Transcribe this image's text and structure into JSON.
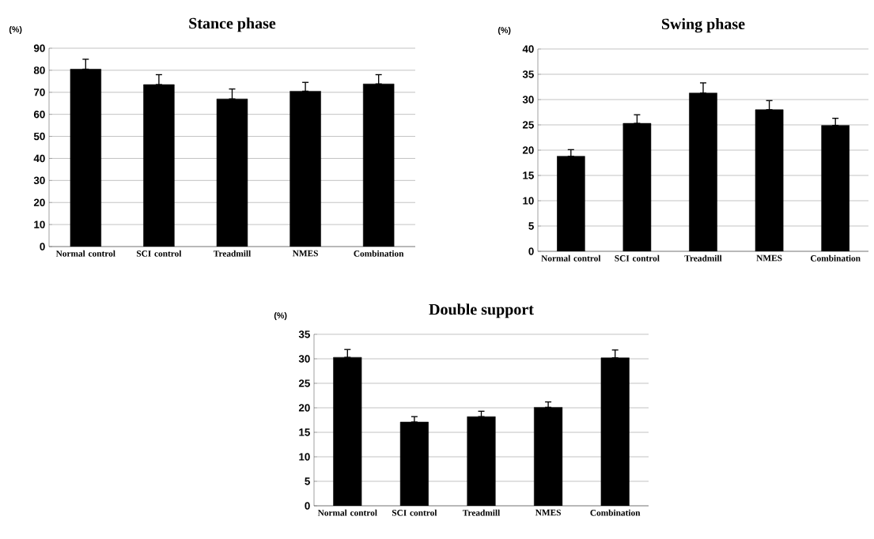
{
  "chart_data": [
    {
      "type": "bar",
      "title": "Stance phase",
      "ylabel": "(%)",
      "categories": [
        "Normal control",
        "SCI control",
        "Treadmill",
        "NMES",
        "Combination"
      ],
      "color": "#000000",
      "values": [
        80.5,
        73.5,
        67,
        70.5,
        73.8
      ],
      "errors": [
        [
          80.5,
          85
        ],
        [
          73.5,
          78
        ],
        [
          67,
          71.5
        ],
        [
          70.5,
          74.5
        ],
        [
          73.8,
          78
        ]
      ],
      "ylim": [
        0,
        90
      ],
      "yticks": [
        0,
        10,
        20,
        30,
        40,
        50,
        60,
        70,
        80,
        90
      ],
      "grid": "y"
    },
    {
      "type": "bar",
      "title": "Swing phase",
      "ylabel": "(%)",
      "categories": [
        "Normal control",
        "SCI control",
        "Treadmill",
        "NMES",
        "Combination"
      ],
      "color": "#000000",
      "values": [
        18.8,
        25.3,
        31.3,
        28,
        24.9
      ],
      "errors": [
        [
          18.8,
          20.1
        ],
        [
          25.3,
          27
        ],
        [
          31.3,
          33.3
        ],
        [
          28,
          29.8
        ],
        [
          24.9,
          26.3
        ]
      ],
      "ylim": [
        0,
        40
      ],
      "yticks": [
        0,
        5,
        10,
        15,
        20,
        25,
        30,
        35,
        40
      ],
      "grid": "y"
    },
    {
      "type": "bar",
      "title": "Double support",
      "ylabel": "(%)",
      "categories": [
        "Normal control",
        "SCI control",
        "Treadmill",
        "NMES",
        "Combination"
      ],
      "color": "#000000",
      "values": [
        30.3,
        17.1,
        18.2,
        20.1,
        30.2
      ],
      "errors": [
        [
          30.3,
          31.9
        ],
        [
          17.1,
          18.2
        ],
        [
          18.2,
          19.3
        ],
        [
          20.1,
          21.2
        ],
        [
          30.2,
          31.8
        ]
      ],
      "ylim": [
        0,
        35
      ],
      "yticks": [
        0,
        5,
        10,
        15,
        20,
        25,
        30,
        35
      ],
      "grid": "y"
    }
  ]
}
